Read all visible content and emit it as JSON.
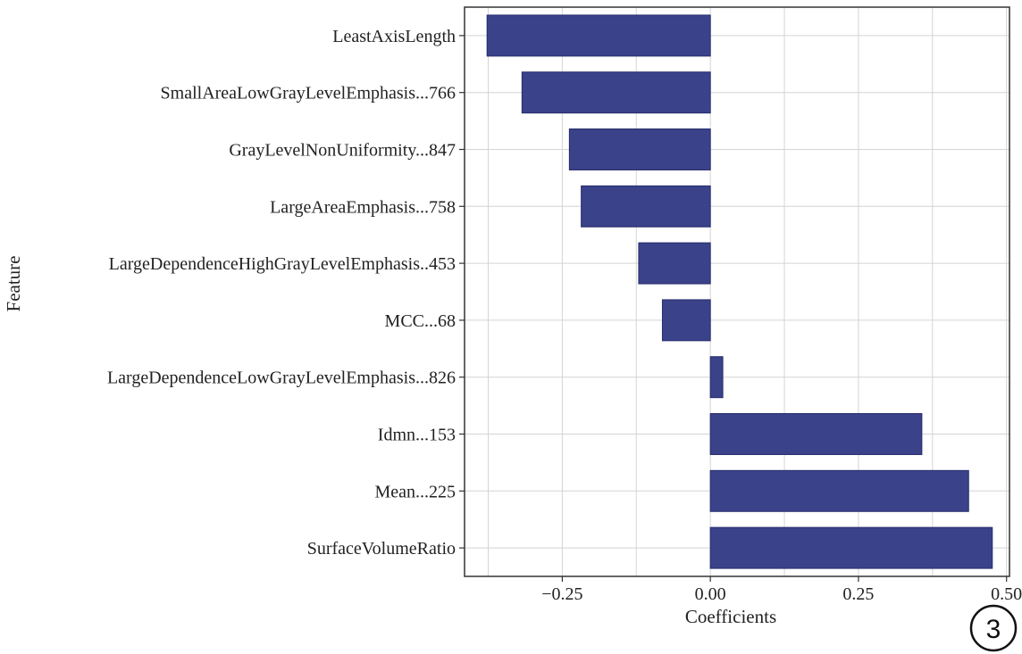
{
  "chart_data": {
    "type": "bar",
    "orientation": "horizontal",
    "title": "",
    "xlabel": "Coefficients",
    "ylabel": "Feature",
    "xlim": [
      -0.415,
      0.505
    ],
    "xticks": [
      -0.25,
      0.0,
      0.25,
      0.5
    ],
    "xtick_labels": [
      "−0.25",
      "0.00",
      "0.25",
      "0.50"
    ],
    "grid": true,
    "bar_color": "#3a428a",
    "categories": [
      "LeastAxisLength",
      "SmallAreaLowGrayLevelEmphasis...766",
      "GrayLevelNonUniformity...847",
      "LargeAreaEmphasis...758",
      "LargeDependenceHighGrayLevelEmphasis..453",
      "MCC...68",
      "LargeDependenceLowGrayLevelEmphasis...826",
      "Idmn...153",
      "Mean...225",
      "SurfaceVolumeRatio"
    ],
    "values": [
      -0.377,
      -0.318,
      -0.238,
      -0.218,
      -0.121,
      -0.081,
      0.021,
      0.357,
      0.436,
      0.476
    ]
  },
  "badge": {
    "text": "3"
  }
}
